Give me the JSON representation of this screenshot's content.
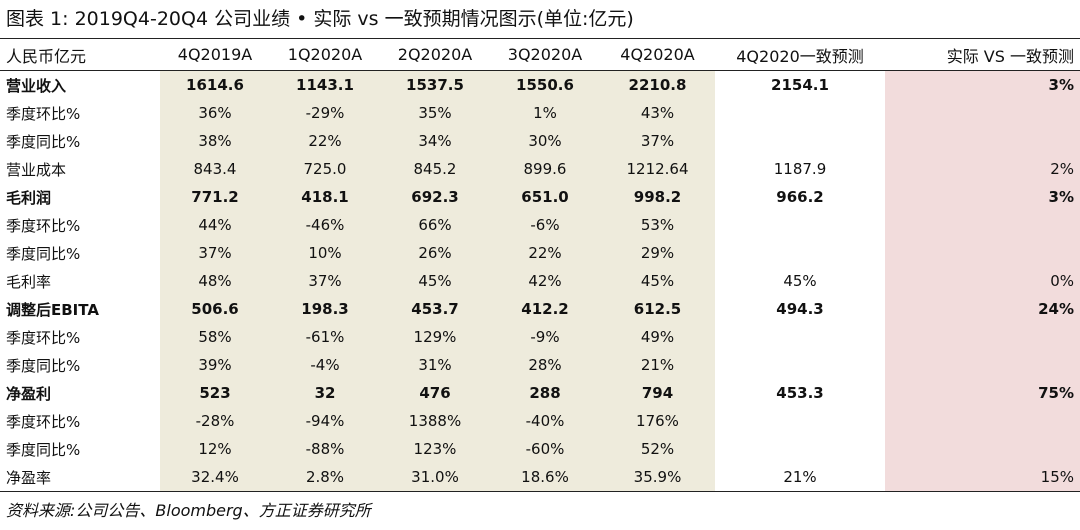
{
  "title": "图表 1: 2019Q4-20Q4 公司业绩 • 实际 vs 一致预期情况图示(单位:亿元)",
  "table": {
    "header": [
      "人民币亿元",
      "4Q2019A",
      "1Q2020A",
      "2Q2020A",
      "3Q2020A",
      "4Q2020A",
      "4Q2020一致预测",
      "实际 VS 一致预测"
    ],
    "rows": [
      {
        "bold": true,
        "cells": [
          "营业收入",
          "1614.6",
          "1143.1",
          "1537.5",
          "1550.6",
          "2210.8",
          "2154.1",
          "3%"
        ]
      },
      {
        "bold": false,
        "cells": [
          "季度环比%",
          "36%",
          "-29%",
          "35%",
          "1%",
          "43%",
          null,
          null
        ]
      },
      {
        "bold": false,
        "cells": [
          "季度同比%",
          "38%",
          "22%",
          "34%",
          "30%",
          "37%",
          null,
          null
        ]
      },
      {
        "bold": false,
        "cells": [
          "营业成本",
          "843.4",
          "725.0",
          "845.2",
          "899.6",
          "1212.64",
          "1187.9",
          "2%"
        ]
      },
      {
        "bold": true,
        "cells": [
          "毛利润",
          "771.2",
          "418.1",
          "692.3",
          "651.0",
          "998.2",
          "966.2",
          "3%"
        ]
      },
      {
        "bold": false,
        "cells": [
          "季度环比%",
          "44%",
          "-46%",
          "66%",
          "-6%",
          "53%",
          null,
          null
        ]
      },
      {
        "bold": false,
        "cells": [
          "季度同比%",
          "37%",
          "10%",
          "26%",
          "22%",
          "29%",
          null,
          null
        ]
      },
      {
        "bold": false,
        "cells": [
          "毛利率",
          "48%",
          "37%",
          "45%",
          "42%",
          "45%",
          "45%",
          "0%"
        ]
      },
      {
        "bold": true,
        "cells": [
          "调整后EBITA",
          "506.6",
          "198.3",
          "453.7",
          "412.2",
          "612.5",
          "494.3",
          "24%"
        ]
      },
      {
        "bold": false,
        "cells": [
          "季度环比%",
          "58%",
          "-61%",
          "129%",
          "-9%",
          "49%",
          null,
          null
        ]
      },
      {
        "bold": false,
        "cells": [
          "季度同比%",
          "39%",
          "-4%",
          "31%",
          "28%",
          "21%",
          null,
          null
        ]
      },
      {
        "bold": true,
        "cells": [
          "净盈利",
          "523",
          "32",
          "476",
          "288",
          "794",
          "453.3",
          "75%"
        ]
      },
      {
        "bold": false,
        "cells": [
          "季度环比%",
          "-28%",
          "-94%",
          "1388%",
          "-40%",
          "176%",
          null,
          null
        ]
      },
      {
        "bold": false,
        "cells": [
          "季度同比%",
          "12%",
          "-88%",
          "123%",
          "-60%",
          "52%",
          null,
          null
        ]
      },
      {
        "bold": false,
        "cells": [
          "净盈率",
          "32.4%",
          "2.8%",
          "31.0%",
          "18.6%",
          "35.9%",
          "21%",
          "15%"
        ]
      }
    ]
  },
  "source": "资料来源:公司公告、Bloomberg、方正证券研究所"
}
